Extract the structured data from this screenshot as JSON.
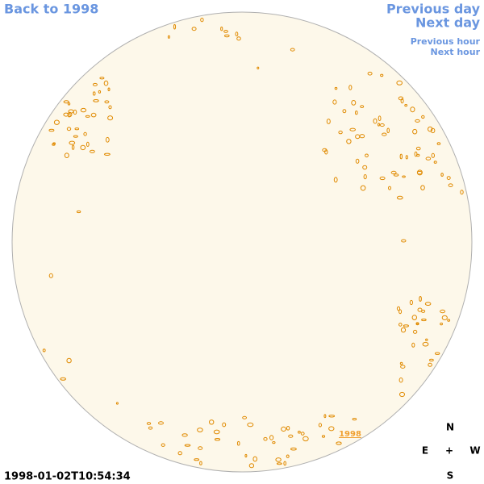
{
  "links": {
    "back": "Back to 1998",
    "previous_day": "Previous day",
    "next_day": "Next day",
    "previous_hour": "Previous hour",
    "next_hour": "Next hour"
  },
  "image": {
    "year_label": "1998",
    "timestamp": "1998-01-02T10:54:34"
  },
  "compass": {
    "north": "N",
    "east": "E",
    "center": "+",
    "west": "W",
    "south": "S"
  }
}
